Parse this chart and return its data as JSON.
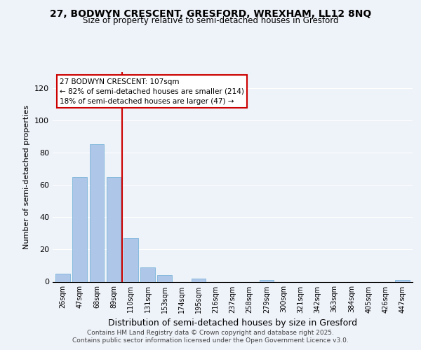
{
  "title_line1": "27, BODWYN CRESCENT, GRESFORD, WREXHAM, LL12 8NQ",
  "title_line2": "Size of property relative to semi-detached houses in Gresford",
  "xlabel": "Distribution of semi-detached houses by size in Gresford",
  "ylabel": "Number of semi-detached properties",
  "bar_color": "#aec6e8",
  "bar_edge_color": "#6aaed6",
  "annotation_title": "27 BODWYN CRESCENT: 107sqm",
  "annotation_line1": "← 82% of semi-detached houses are smaller (214)",
  "annotation_line2": "18% of semi-detached houses are larger (47) →",
  "property_line_color": "#cc0000",
  "annotation_box_color": "#cc0000",
  "categories": [
    "26sqm",
    "47sqm",
    "68sqm",
    "89sqm",
    "110sqm",
    "131sqm",
    "153sqm",
    "174sqm",
    "195sqm",
    "216sqm",
    "237sqm",
    "258sqm",
    "279sqm",
    "300sqm",
    "321sqm",
    "342sqm",
    "363sqm",
    "384sqm",
    "405sqm",
    "426sqm",
    "447sqm"
  ],
  "values": [
    5,
    65,
    85,
    65,
    27,
    9,
    4,
    0,
    2,
    0,
    0,
    0,
    1,
    0,
    0,
    0,
    0,
    0,
    0,
    0,
    1
  ],
  "ylim": [
    0,
    130
  ],
  "yticks": [
    0,
    20,
    40,
    60,
    80,
    100,
    120
  ],
  "background_color": "#eef2f9",
  "plot_background": "#eef2f9",
  "footer_line1": "Contains HM Land Registry data © Crown copyright and database right 2025.",
  "footer_line2": "Contains public sector information licensed under the Open Government Licence v3.0."
}
